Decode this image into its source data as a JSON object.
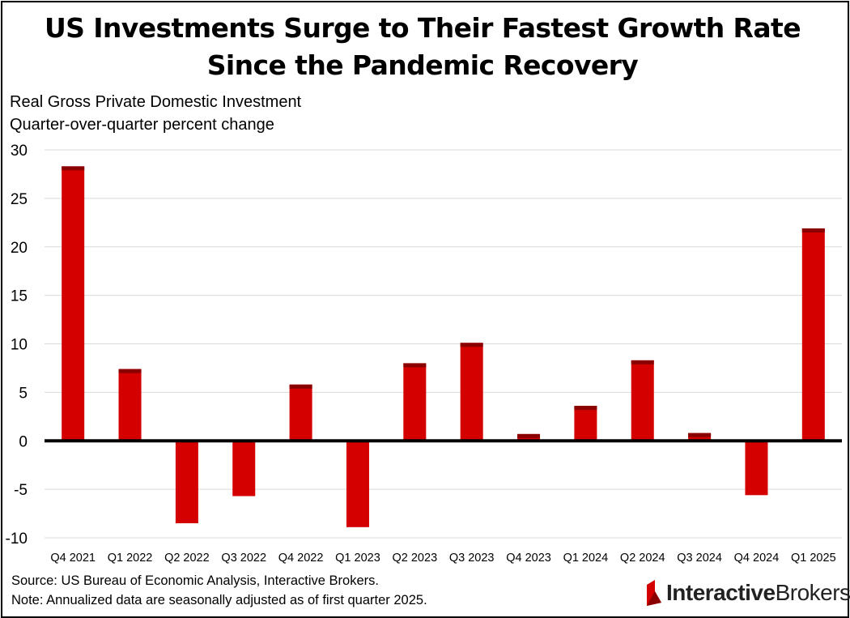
{
  "title_line1": "US Investments Surge to Their Fastest Growth Rate",
  "title_line2": "Since the Pandemic Recovery",
  "subtitle_line1": "Real Gross Private Domestic Investment",
  "subtitle_line2": "Quarter-over-quarter percent change",
  "source": "Source: US Bureau of Economic Analysis, Interactive Brokers.",
  "note": "Note: Annualized data are seasonally adjusted as of first quarter 2025.",
  "logo": {
    "bold": "Interactive",
    "regular": "Brokers",
    "icon": "ib-flag-icon"
  },
  "colors": {
    "bar": "#d40000",
    "bar_top": "#8a0000",
    "grid": "#d9d9d9",
    "axis": "#000000"
  },
  "chart_data": {
    "type": "bar",
    "title": "US Investments Surge to Their Fastest Growth Rate Since the Pandemic Recovery",
    "xlabel": "",
    "ylabel": "Quarter-over-quarter percent change",
    "categories": [
      "Q4 2021",
      "Q1 2022",
      "Q2 2022",
      "Q3 2022",
      "Q4 2022",
      "Q1 2023",
      "Q2 2023",
      "Q3 2023",
      "Q4 2023",
      "Q1 2024",
      "Q2 2024",
      "Q3 2024",
      "Q4 2024",
      "Q1 2025"
    ],
    "values": [
      28.3,
      7.4,
      -8.5,
      -5.7,
      5.8,
      -8.9,
      8.0,
      10.1,
      0.7,
      3.6,
      8.3,
      0.8,
      -5.6,
      21.9
    ],
    "ylim": [
      -10,
      30
    ],
    "yticks": [
      30,
      25,
      20,
      15,
      10,
      5,
      0,
      -5,
      -10
    ],
    "grid": true,
    "legend": "none"
  }
}
